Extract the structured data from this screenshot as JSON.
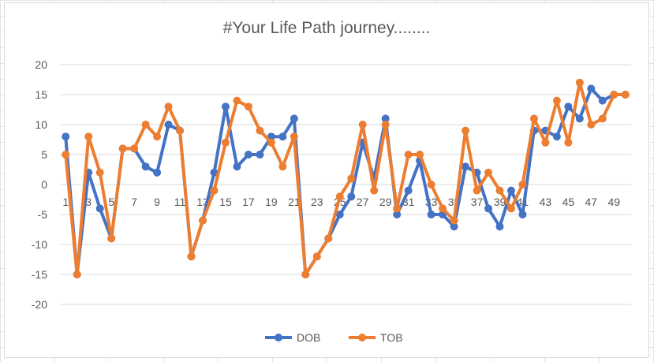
{
  "chart_data": {
    "type": "line",
    "title": "#Your Life Path journey........",
    "xlabel": "",
    "ylabel": "",
    "ylim": [
      -20,
      20
    ],
    "yticks": [
      20,
      15,
      10,
      5,
      0,
      -5,
      -10,
      -15,
      -20
    ],
    "xtick_labels": [
      "1",
      "3",
      "5",
      "7",
      "9",
      "11",
      "13",
      "15",
      "17",
      "19",
      "21",
      "23",
      "25",
      "27",
      "29",
      "31",
      "33",
      "35",
      "37",
      "39",
      "41",
      "43",
      "45",
      "47",
      "49"
    ],
    "x": [
      1,
      2,
      3,
      4,
      5,
      6,
      7,
      8,
      9,
      10,
      11,
      12,
      13,
      14,
      15,
      16,
      17,
      18,
      19,
      20,
      21,
      22,
      23,
      24,
      25,
      26,
      27,
      28,
      29,
      30,
      31,
      32,
      33,
      34,
      35,
      36,
      37,
      38,
      39,
      40,
      41,
      42,
      43,
      44,
      45,
      46,
      47,
      48,
      49,
      50
    ],
    "grid": true,
    "legend_position": "bottom",
    "series": [
      {
        "name": "DOB",
        "color": "#4472C4",
        "values": [
          8,
          -15,
          2,
          -4,
          -9,
          6,
          6,
          3,
          2,
          10,
          9,
          -12,
          -6,
          2,
          13,
          3,
          5,
          5,
          8,
          8,
          11,
          -15,
          -12,
          -9,
          -5,
          -2,
          7,
          1,
          11,
          -5,
          -1,
          4,
          -5,
          -5,
          -7,
          3,
          2,
          -4,
          -7,
          -1,
          -5,
          9,
          9,
          8,
          13,
          11,
          16,
          14,
          15,
          15
        ]
      },
      {
        "name": "TOB",
        "color": "#ED7D31",
        "values": [
          5,
          -15,
          8,
          2,
          -9,
          6,
          6,
          10,
          8,
          13,
          9,
          -12,
          -6,
          -1,
          7,
          14,
          13,
          9,
          7,
          3,
          8,
          -15,
          -12,
          -9,
          -2,
          1,
          10,
          -1,
          10,
          -4,
          5,
          5,
          0,
          -4,
          -6,
          9,
          -1,
          2,
          -1,
          -4,
          0,
          11,
          7,
          14,
          7,
          17,
          10,
          11,
          15,
          15
        ]
      }
    ]
  }
}
